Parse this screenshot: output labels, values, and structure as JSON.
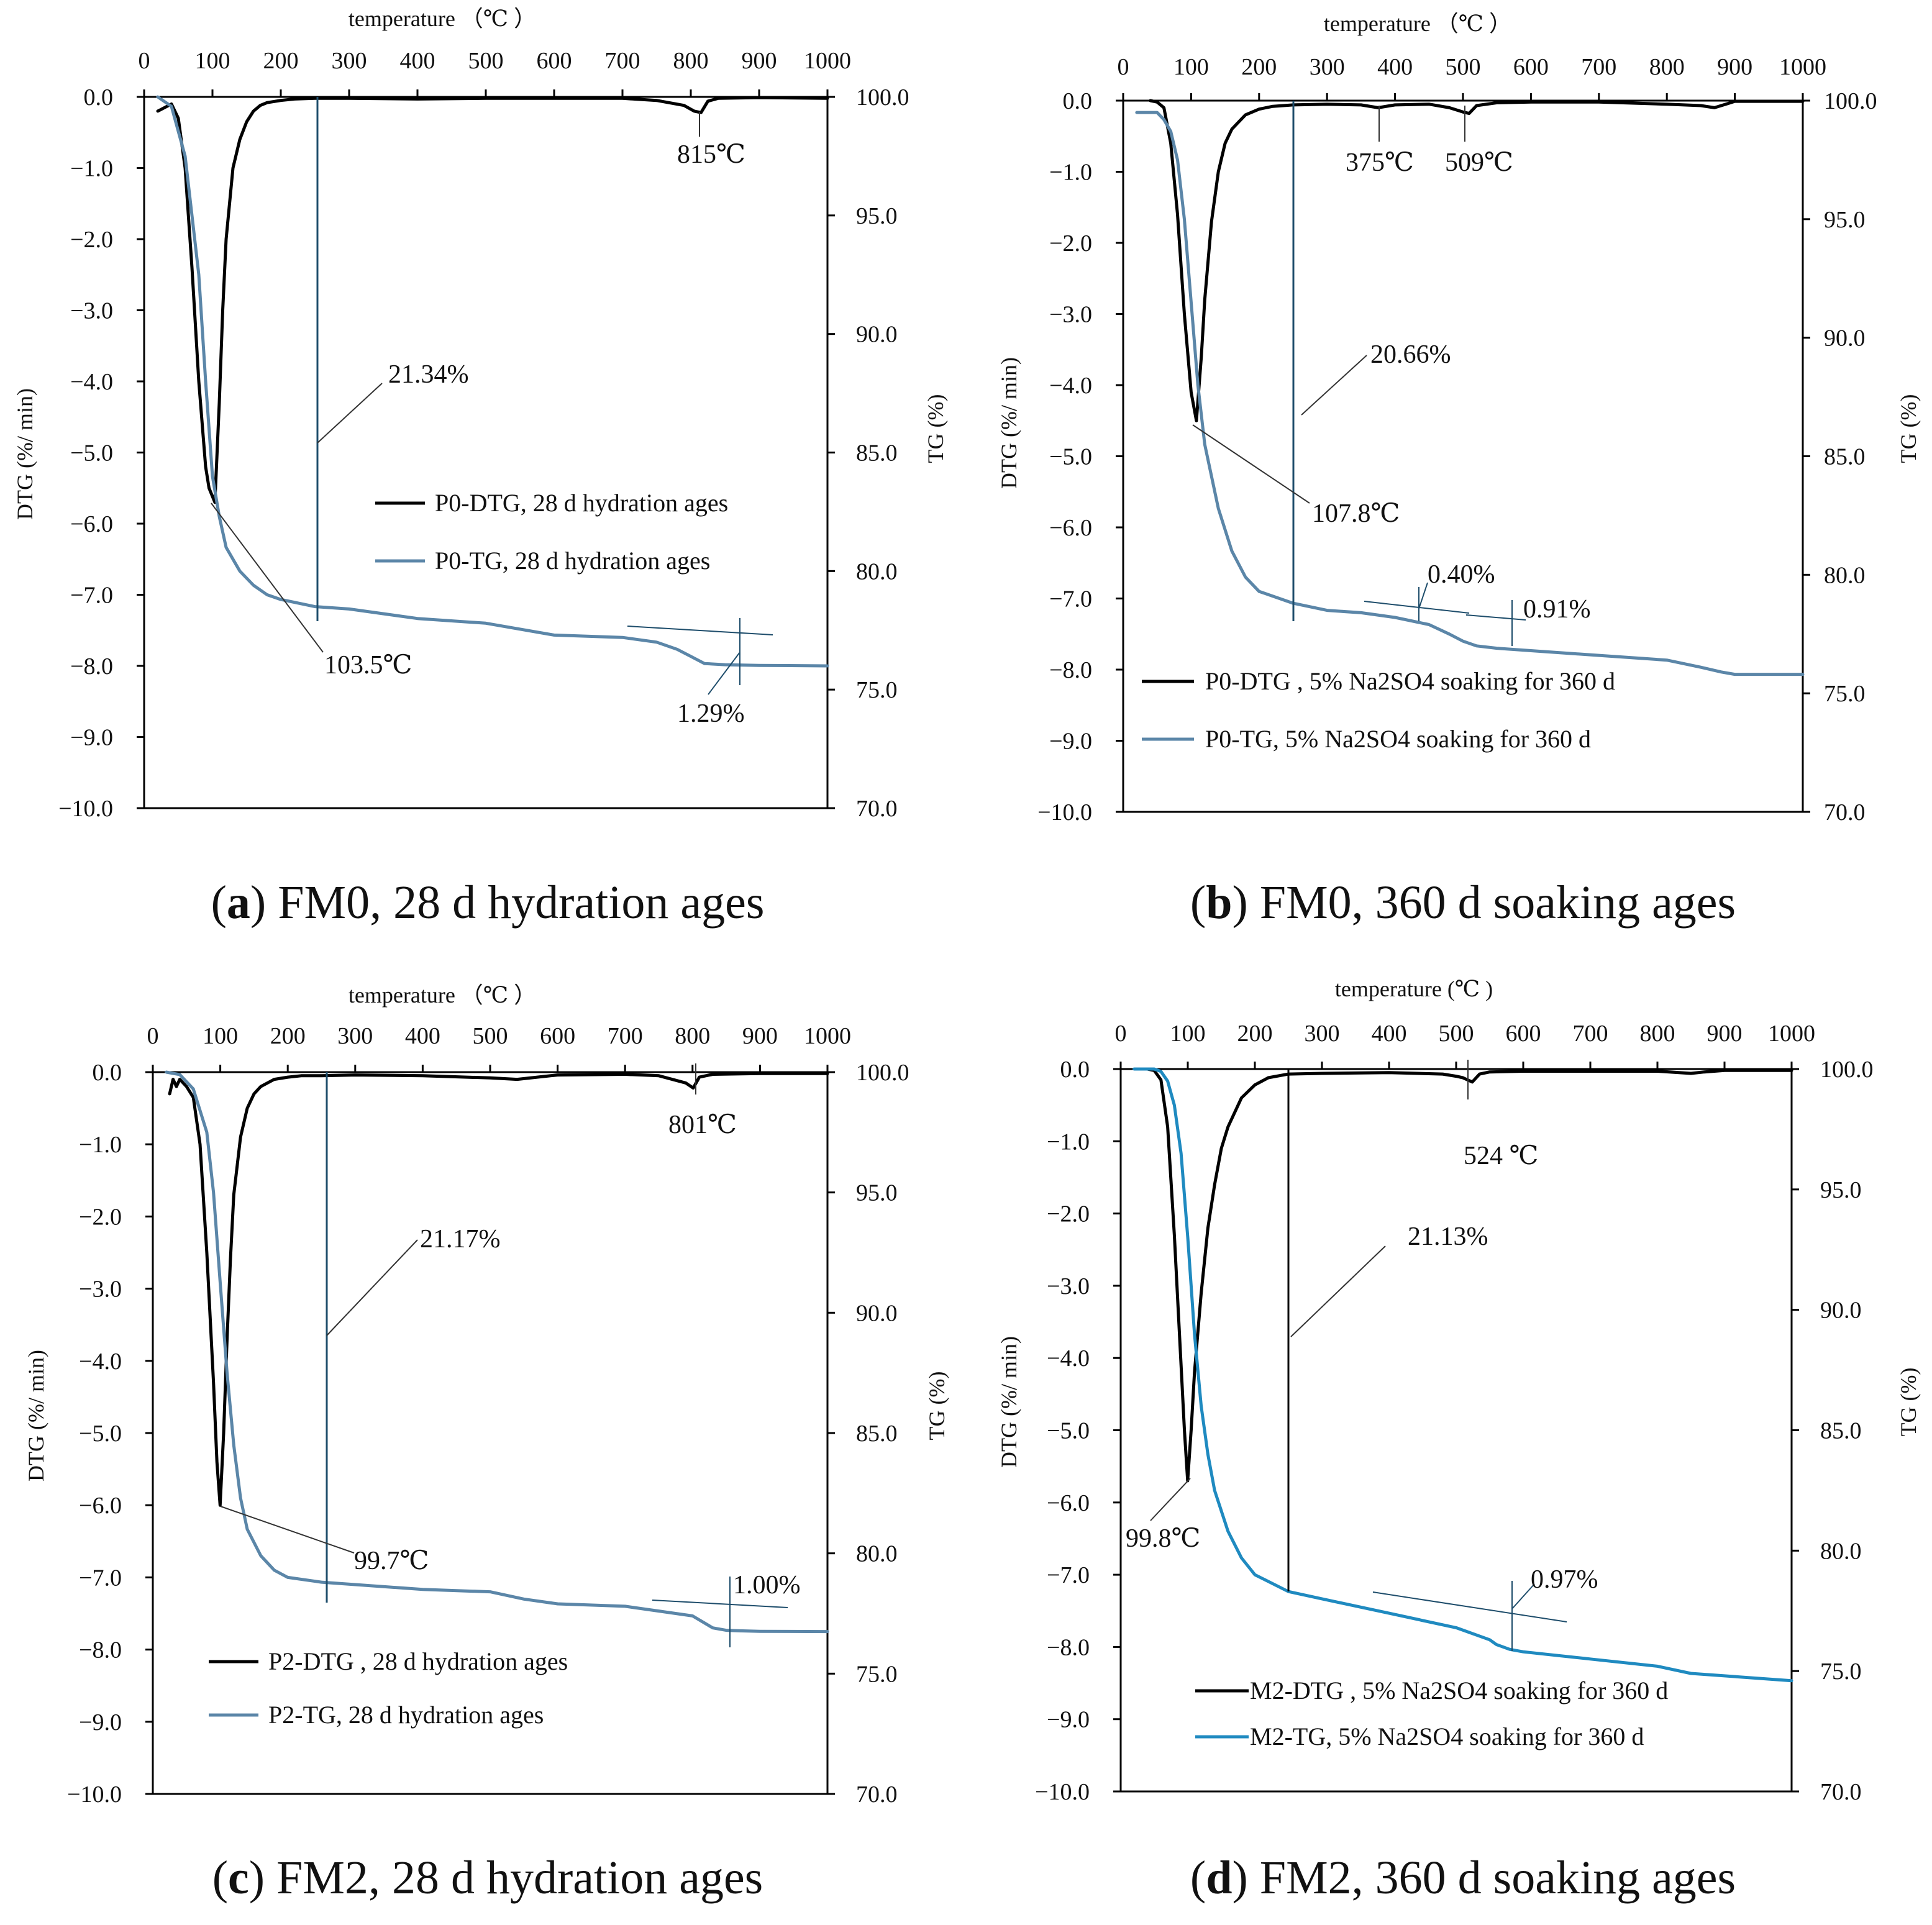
{
  "colors": {
    "dtg": "#000000",
    "tg": "#5b86a8",
    "tg_d": "#1f8ac0",
    "frame": "#000000",
    "marker": "#1e4d6b"
  },
  "chart_data": [
    {
      "type": "line",
      "caption": {
        "letter": "a",
        "text": " FM0, 28 d hydration ages"
      },
      "xlabel": "temperature （℃ ）",
      "ylabel": "DTG (%/ min)",
      "y2label": "TG (%)",
      "xlim": [
        0,
        1000
      ],
      "ylim": [
        -10,
        0
      ],
      "y2lim": [
        70,
        100
      ],
      "xticks": [
        "0",
        "100",
        "200",
        "300",
        "400",
        "500",
        "600",
        "700",
        "800",
        "900",
        "1000"
      ],
      "yticks": [
        "0.0",
        "−1.0",
        "−2.0",
        "−3.0",
        "−4.0",
        "−5.0",
        "−6.0",
        "−7.0",
        "−8.0",
        "−9.0",
        "−10.0"
      ],
      "y2ticks": [
        "100.0",
        "95.0",
        "90.0",
        "85.0",
        "80.0",
        "75.0",
        "70.0"
      ],
      "legend": [
        "P0-DTG, 28 d hydration ages",
        "P0-TG,  28 d hydration ages"
      ],
      "legend_position": "center-right",
      "series": [
        {
          "name": "P0-DTG, 28 d hydration ages",
          "axis": "left",
          "color_key": "dtg",
          "x": [
            20,
            30,
            40,
            50,
            60,
            70,
            80,
            90,
            95,
            103.5,
            110,
            115,
            120,
            130,
            140,
            150,
            160,
            170,
            180,
            200,
            220,
            250,
            300,
            400,
            500,
            600,
            700,
            750,
            790,
            805,
            815,
            825,
            840,
            900,
            1000
          ],
          "y": [
            -0.2,
            -0.15,
            -0.1,
            -0.3,
            -1.0,
            -2.4,
            -4.0,
            -5.2,
            -5.5,
            -5.7,
            -4.3,
            -3.0,
            -2.0,
            -1.0,
            -0.6,
            -0.35,
            -0.2,
            -0.12,
            -0.08,
            -0.05,
            -0.03,
            -0.02,
            -0.02,
            -0.03,
            -0.02,
            -0.02,
            -0.02,
            -0.05,
            -0.12,
            -0.2,
            -0.22,
            -0.06,
            -0.02,
            -0.01,
            -0.02
          ]
        },
        {
          "name": "P0-TG,  28 d hydration ages",
          "axis": "right",
          "color_key": "tg",
          "x": [
            20,
            40,
            60,
            80,
            90,
            100,
            110,
            120,
            140,
            160,
            180,
            200,
            250,
            300,
            400,
            500,
            600,
            700,
            750,
            780,
            800,
            820,
            850,
            900,
            1000
          ],
          "y": [
            100,
            99.6,
            97.5,
            92.5,
            88,
            84,
            82.3,
            81.0,
            80.0,
            79.4,
            79.0,
            78.8,
            78.5,
            78.4,
            78.0,
            77.8,
            77.3,
            77.2,
            77.0,
            76.7,
            76.4,
            76.1,
            76.05,
            76.02,
            76.0
          ]
        }
      ],
      "annotations": [
        "815℃",
        "21.34%",
        "103.5℃",
        "1.29%"
      ]
    },
    {
      "type": "line",
      "caption": {
        "letter": "b",
        "text": " FM0, 360 d soaking ages"
      },
      "xlabel": "temperature （℃ ）",
      "ylabel": "DTG (%/ min)",
      "y2label": "TG (%)",
      "xlim": [
        0,
        1000
      ],
      "ylim": [
        -10,
        0
      ],
      "y2lim": [
        70,
        100
      ],
      "xticks": [
        "0",
        "100",
        "200",
        "300",
        "400",
        "500",
        "600",
        "700",
        "800",
        "900",
        "1000"
      ],
      "yticks": [
        "0.0",
        "−1.0",
        "−2.0",
        "−3.0",
        "−4.0",
        "−5.0",
        "−6.0",
        "−7.0",
        "−8.0",
        "−9.0",
        "−10.0"
      ],
      "y2ticks": [
        "100.0",
        "95.0",
        "90.0",
        "85.0",
        "80.0",
        "75.0",
        "70.0"
      ],
      "legend": [
        "P0-DTG , 5% Na2SO4 soaking for 360 d",
        "P0-TG, 5% Na2SO4  soaking for 360 d"
      ],
      "legend_position": "bottom",
      "series": [
        {
          "name": "P0-DTG , 5% Na2SO4 soaking for 360 d",
          "axis": "left",
          "color_key": "dtg",
          "x": [
            40,
            50,
            60,
            70,
            80,
            90,
            100,
            107.8,
            115,
            120,
            130,
            140,
            150,
            160,
            180,
            200,
            220,
            250,
            300,
            350,
            375,
            400,
            450,
            480,
            500,
            509,
            520,
            550,
            600,
            700,
            800,
            850,
            870,
            890,
            900,
            1000
          ],
          "y": [
            0,
            -0.02,
            -0.1,
            -0.6,
            -1.6,
            -3.0,
            -4.1,
            -4.5,
            -3.6,
            -2.8,
            -1.7,
            -1.0,
            -0.6,
            -0.4,
            -0.2,
            -0.12,
            -0.08,
            -0.06,
            -0.05,
            -0.06,
            -0.1,
            -0.06,
            -0.05,
            -0.1,
            -0.16,
            -0.18,
            -0.07,
            -0.03,
            -0.02,
            -0.02,
            -0.05,
            -0.07,
            -0.1,
            -0.04,
            -0.01,
            -0.01
          ]
        },
        {
          "name": "P0-TG, 5% Na2SO4  soaking for 360 d",
          "axis": "right",
          "color_key": "tg",
          "x": [
            20,
            50,
            60,
            70,
            80,
            90,
            100,
            110,
            120,
            140,
            160,
            180,
            200,
            250,
            300,
            350,
            400,
            450,
            480,
            500,
            520,
            550,
            600,
            700,
            800,
            850,
            880,
            900,
            1000
          ],
          "y": [
            99.5,
            99.5,
            99.2,
            98.7,
            97.5,
            95.0,
            91.5,
            88.0,
            85.5,
            82.8,
            81.0,
            79.9,
            79.3,
            78.8,
            78.5,
            78.4,
            78.2,
            77.9,
            77.5,
            77.2,
            77.0,
            76.9,
            76.8,
            76.6,
            76.4,
            76.1,
            75.9,
            75.8,
            75.8
          ]
        }
      ],
      "annotations": [
        "375℃",
        "509℃",
        "20.66%",
        "107.8℃",
        "0.40%",
        "0.91%"
      ]
    },
    {
      "type": "line",
      "caption": {
        "letter": "c",
        "text": " FM2, 28 d hydration ages"
      },
      "xlabel": "temperature （℃ ）",
      "ylabel": "DTG (%/ min)",
      "y2label": "TG (%)",
      "xlim": [
        0,
        1000
      ],
      "ylim": [
        -10,
        0
      ],
      "y2lim": [
        70,
        100
      ],
      "xticks": [
        "0",
        "100",
        "200",
        "300",
        "400",
        "500",
        "600",
        "700",
        "800",
        "900",
        "1000"
      ],
      "yticks": [
        "0.0",
        "−1.0",
        "−2.0",
        "−3.0",
        "−4.0",
        "−5.0",
        "−6.0",
        "−7.0",
        "−8.0",
        "−9.0",
        "−10.0"
      ],
      "y2ticks": [
        "100.0",
        "95.0",
        "90.0",
        "85.0",
        "80.0",
        "75.0",
        "70.0"
      ],
      "legend": [
        "P2-DTG , 28 d hydration ages",
        "P2-TG, 28 d hydration ages"
      ],
      "legend_position": "bottom-left",
      "series": [
        {
          "name": "P2-DTG , 28 d hydration ages",
          "axis": "left",
          "color_key": "dtg",
          "x": [
            25,
            30,
            35,
            40,
            50,
            60,
            70,
            80,
            90,
            95,
            99.7,
            105,
            110,
            115,
            120,
            130,
            140,
            150,
            160,
            180,
            200,
            220,
            250,
            300,
            400,
            500,
            540,
            600,
            700,
            750,
            790,
            801,
            810,
            830,
            900,
            1000
          ],
          "y": [
            -0.3,
            -0.1,
            -0.2,
            -0.1,
            -0.2,
            -0.35,
            -1.0,
            -2.5,
            -4.3,
            -5.4,
            -6.0,
            -5.0,
            -3.7,
            -2.6,
            -1.7,
            -0.9,
            -0.5,
            -0.3,
            -0.2,
            -0.1,
            -0.07,
            -0.05,
            -0.05,
            -0.04,
            -0.05,
            -0.08,
            -0.1,
            -0.04,
            -0.03,
            -0.05,
            -0.15,
            -0.22,
            -0.07,
            -0.03,
            -0.02,
            -0.02
          ]
        },
        {
          "name": "P2-TG, 28 d hydration ages",
          "axis": "right",
          "color_key": "tg",
          "x": [
            20,
            40,
            60,
            80,
            90,
            100,
            110,
            120,
            130,
            140,
            160,
            180,
            200,
            250,
            300,
            400,
            500,
            550,
            600,
            700,
            750,
            800,
            830,
            850,
            870,
            900,
            1000
          ],
          "y": [
            100,
            99.9,
            99.3,
            97.5,
            95.0,
            91.2,
            87.5,
            84.5,
            82.3,
            81.0,
            79.9,
            79.3,
            79.0,
            78.8,
            78.7,
            78.5,
            78.4,
            78.1,
            77.9,
            77.8,
            77.6,
            77.4,
            76.9,
            76.8,
            76.78,
            76.76,
            76.75
          ]
        }
      ],
      "annotations": [
        "801℃",
        "21.17%",
        "99.7℃",
        "1.00%"
      ]
    },
    {
      "type": "line",
      "caption": {
        "letter": "d",
        "text": " FM2, 360 d soaking ages"
      },
      "xlabel": "temperature (℃ )",
      "ylabel": "DTG (%/ min)",
      "y2label": "TG (%)",
      "xlim": [
        0,
        1000
      ],
      "ylim": [
        -10,
        0
      ],
      "y2lim": [
        70,
        100
      ],
      "xticks": [
        "0",
        "100",
        "200",
        "300",
        "400",
        "500",
        "600",
        "700",
        "800",
        "900",
        "1000"
      ],
      "yticks": [
        "0.0",
        "−1.0",
        "−2.0",
        "−3.0",
        "−4.0",
        "−5.0",
        "−6.0",
        "−7.0",
        "−8.0",
        "−9.0",
        "−10.0"
      ],
      "y2ticks": [
        "100.0",
        "95.0",
        "90.0",
        "85.0",
        "80.0",
        "75.0",
        "70.0"
      ],
      "legend": [
        "M2-DTG , 5% Na2SO4 soaking for 360 d",
        "M2-TG, 5% Na2SO4  soaking for 360 d"
      ],
      "legend_position": "bottom-right",
      "series": [
        {
          "name": "M2-DTG , 5% Na2SO4 soaking for 360 d",
          "axis": "left",
          "color_key": "dtg",
          "x": [
            40,
            50,
            60,
            70,
            80,
            90,
            95,
            99.8,
            105,
            110,
            120,
            130,
            140,
            150,
            160,
            180,
            200,
            220,
            250,
            300,
            400,
            480,
            500,
            510,
            524,
            535,
            550,
            600,
            700,
            800,
            850,
            870,
            900,
            1000
          ],
          "y": [
            0,
            -0.02,
            -0.15,
            -0.8,
            -2.3,
            -4.1,
            -5.0,
            -5.7,
            -5.0,
            -4.2,
            -3.1,
            -2.2,
            -1.6,
            -1.1,
            -0.8,
            -0.4,
            -0.22,
            -0.12,
            -0.07,
            -0.06,
            -0.05,
            -0.07,
            -0.1,
            -0.12,
            -0.18,
            -0.07,
            -0.04,
            -0.03,
            -0.03,
            -0.03,
            -0.06,
            -0.04,
            -0.02,
            -0.02
          ]
        },
        {
          "name": "M2-TG, 5% Na2SO4  soaking for 360 d",
          "axis": "right",
          "color_key": "tg_d",
          "x": [
            20,
            50,
            60,
            70,
            80,
            90,
            100,
            110,
            120,
            130,
            140,
            160,
            180,
            200,
            250,
            300,
            400,
            500,
            550,
            560,
            580,
            600,
            700,
            800,
            850,
            900,
            1000
          ],
          "y": [
            100,
            100,
            99.9,
            99.5,
            98.5,
            96.5,
            93.0,
            89.0,
            86.0,
            84.0,
            82.5,
            80.8,
            79.7,
            79.0,
            78.3,
            78.0,
            77.4,
            76.8,
            76.3,
            76.1,
            75.9,
            75.8,
            75.5,
            75.2,
            74.9,
            74.8,
            74.6
          ]
        }
      ],
      "annotations": [
        "524 ℃",
        "21.13%",
        "99.8℃",
        "0.97%"
      ]
    }
  ]
}
